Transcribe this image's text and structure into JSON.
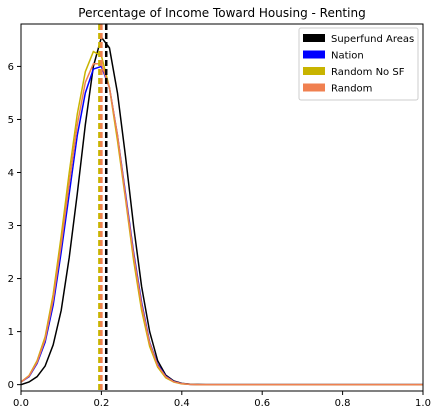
{
  "chart_data": {
    "type": "line",
    "title": "Percentage of Income Toward Housing - Renting",
    "xlabel": "",
    "ylabel": "",
    "xlim": [
      0,
      1
    ],
    "ylim": [
      -0.12,
      6.8
    ],
    "x_ticks": [
      0.0,
      0.2,
      0.4,
      0.6,
      0.8,
      1.0
    ],
    "x_tick_labels": [
      "0.0",
      "0.2",
      "0.4",
      "0.6",
      "0.8",
      "1.0"
    ],
    "y_ticks": [
      0,
      1,
      2,
      3,
      4,
      5,
      6
    ],
    "y_tick_labels": [
      "0",
      "1",
      "2",
      "3",
      "4",
      "5",
      "6"
    ],
    "grid": false,
    "legend_position": "top-right",
    "x": [
      0.0,
      0.02,
      0.04,
      0.06,
      0.08,
      0.1,
      0.12,
      0.14,
      0.16,
      0.18,
      0.2,
      0.22,
      0.24,
      0.26,
      0.28,
      0.3,
      0.32,
      0.34,
      0.36,
      0.38,
      0.4,
      0.42,
      0.44,
      0.46,
      0.5,
      0.6,
      0.7,
      0.8,
      0.9,
      1.0
    ],
    "series": [
      {
        "name": "Superfund Areas",
        "color": "#000000",
        "values": [
          0.0,
          0.05,
          0.15,
          0.35,
          0.75,
          1.4,
          2.4,
          3.6,
          4.9,
          6.0,
          6.55,
          6.35,
          5.5,
          4.3,
          3.0,
          1.85,
          1.0,
          0.45,
          0.18,
          0.07,
          0.025,
          0.01,
          0.005,
          0.0,
          0.0,
          0.0,
          0.0,
          0.0,
          0.0,
          0.0
        ],
        "mean": 0.21
      },
      {
        "name": "Nation",
        "color": "#0000ff",
        "values": [
          0.05,
          0.15,
          0.4,
          0.8,
          1.5,
          2.5,
          3.6,
          4.7,
          5.5,
          5.95,
          6.0,
          5.6,
          4.7,
          3.6,
          2.5,
          1.55,
          0.8,
          0.38,
          0.16,
          0.06,
          0.02,
          0.005,
          0.0,
          0.0,
          0.0,
          0.0,
          0.0,
          0.0,
          0.0,
          0.0
        ],
        "mean": 0.2
      },
      {
        "name": "Random No SF",
        "color": "#c8b400",
        "values": [
          0.05,
          0.17,
          0.45,
          0.9,
          1.7,
          2.8,
          4.0,
          5.1,
          5.9,
          6.28,
          6.2,
          5.6,
          4.6,
          3.5,
          2.35,
          1.4,
          0.72,
          0.33,
          0.13,
          0.05,
          0.015,
          0.005,
          0.0,
          0.0,
          0.0,
          0.0,
          0.0,
          0.0,
          0.0,
          0.0
        ],
        "mean": 0.195
      },
      {
        "name": "Random",
        "color": "#f08050",
        "values": [
          0.05,
          0.16,
          0.42,
          0.85,
          1.6,
          2.65,
          3.8,
          4.9,
          5.7,
          6.05,
          6.05,
          5.6,
          4.7,
          3.55,
          2.45,
          1.5,
          0.78,
          0.36,
          0.15,
          0.055,
          0.018,
          0.005,
          0.0,
          0.0,
          0.0,
          0.0,
          0.0,
          0.0,
          0.0,
          0.0
        ],
        "mean": 0.2
      }
    ],
    "mean_lines": [
      {
        "series": "Random No SF",
        "x": 0.195,
        "color": "#c8b400"
      },
      {
        "series": "Random",
        "x": 0.2,
        "color": "#f08050"
      },
      {
        "series": "Superfund Areas",
        "x": 0.212,
        "color": "#000000"
      }
    ]
  }
}
